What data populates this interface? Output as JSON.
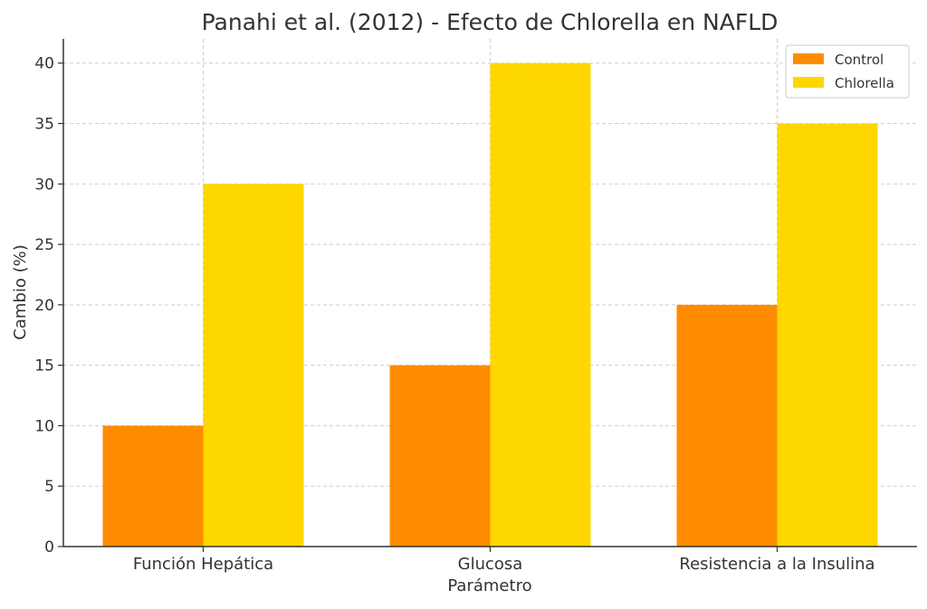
{
  "chart_data": {
    "type": "bar",
    "title": "Panahi et al. (2012) - Efecto de Chlorella en NAFLD",
    "xlabel": "Parámetro",
    "ylabel": "Cambio (%)",
    "categories": [
      "Función Hepática",
      "Glucosa",
      "Resistencia a la Insulina"
    ],
    "series": [
      {
        "name": "Control",
        "values": [
          10,
          15,
          20
        ],
        "color": "#ff8c00"
      },
      {
        "name": "Chlorella",
        "values": [
          30,
          40,
          35
        ],
        "color": "#ffd700"
      }
    ],
    "ylim": [
      0,
      42
    ],
    "yticks": [
      0,
      5,
      10,
      15,
      20,
      25,
      30,
      35,
      40
    ],
    "grid": true,
    "legend_position": "top-right"
  }
}
